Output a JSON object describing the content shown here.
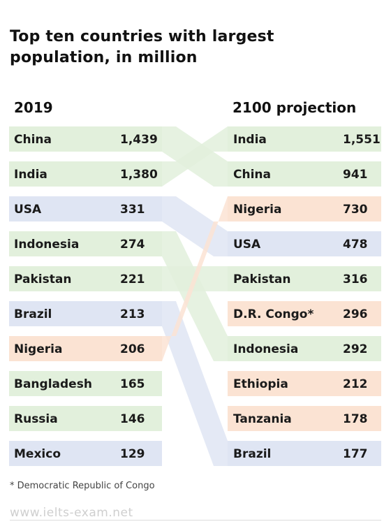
{
  "title": "Top ten countries with largest population, in million",
  "colors": {
    "asia": "#e2f0dc",
    "americas": "#dfe5f3",
    "africa": "#fbe3d3",
    "text": "#1a1a1a"
  },
  "chart_data": {
    "type": "table",
    "left_header": "2019",
    "right_header": "2100 projection",
    "left": [
      {
        "country": "China",
        "value": "1,439",
        "group": "asia"
      },
      {
        "country": "India",
        "value": "1,380",
        "group": "asia"
      },
      {
        "country": "USA",
        "value": "331",
        "group": "americas"
      },
      {
        "country": "Indonesia",
        "value": "274",
        "group": "asia"
      },
      {
        "country": "Pakistan",
        "value": "221",
        "group": "asia"
      },
      {
        "country": "Brazil",
        "value": "213",
        "group": "americas"
      },
      {
        "country": "Nigeria",
        "value": "206",
        "group": "africa"
      },
      {
        "country": "Bangladesh",
        "value": "165",
        "group": "asia"
      },
      {
        "country": "Russia",
        "value": "146",
        "group": "asia"
      },
      {
        "country": "Mexico",
        "value": "129",
        "group": "americas"
      }
    ],
    "right": [
      {
        "country": "India",
        "value": "1,551",
        "group": "asia"
      },
      {
        "country": "China",
        "value": "941",
        "group": "asia"
      },
      {
        "country": "Nigeria",
        "value": "730",
        "group": "africa"
      },
      {
        "country": "USA",
        "value": "478",
        "group": "americas"
      },
      {
        "country": "Pakistan",
        "value": "316",
        "group": "asia"
      },
      {
        "country": "D.R. Congo*",
        "value": "296",
        "group": "africa"
      },
      {
        "country": "Indonesia",
        "value": "292",
        "group": "asia"
      },
      {
        "country": "Ethiopia",
        "value": "212",
        "group": "africa"
      },
      {
        "country": "Tanzania",
        "value": "178",
        "group": "africa"
      },
      {
        "country": "Brazil",
        "value": "177",
        "group": "americas"
      }
    ],
    "links": [
      {
        "left": "China",
        "right": "China"
      },
      {
        "left": "India",
        "right": "India"
      },
      {
        "left": "USA",
        "right": "USA"
      },
      {
        "left": "Indonesia",
        "right": "Indonesia"
      },
      {
        "left": "Pakistan",
        "right": "Pakistan"
      },
      {
        "left": "Brazil",
        "right": "Brazil"
      },
      {
        "left": "Nigeria",
        "right": "Nigeria"
      }
    ]
  },
  "footnote": "* Democratic Republic of Congo",
  "watermark": "www.ielts-exam.net"
}
